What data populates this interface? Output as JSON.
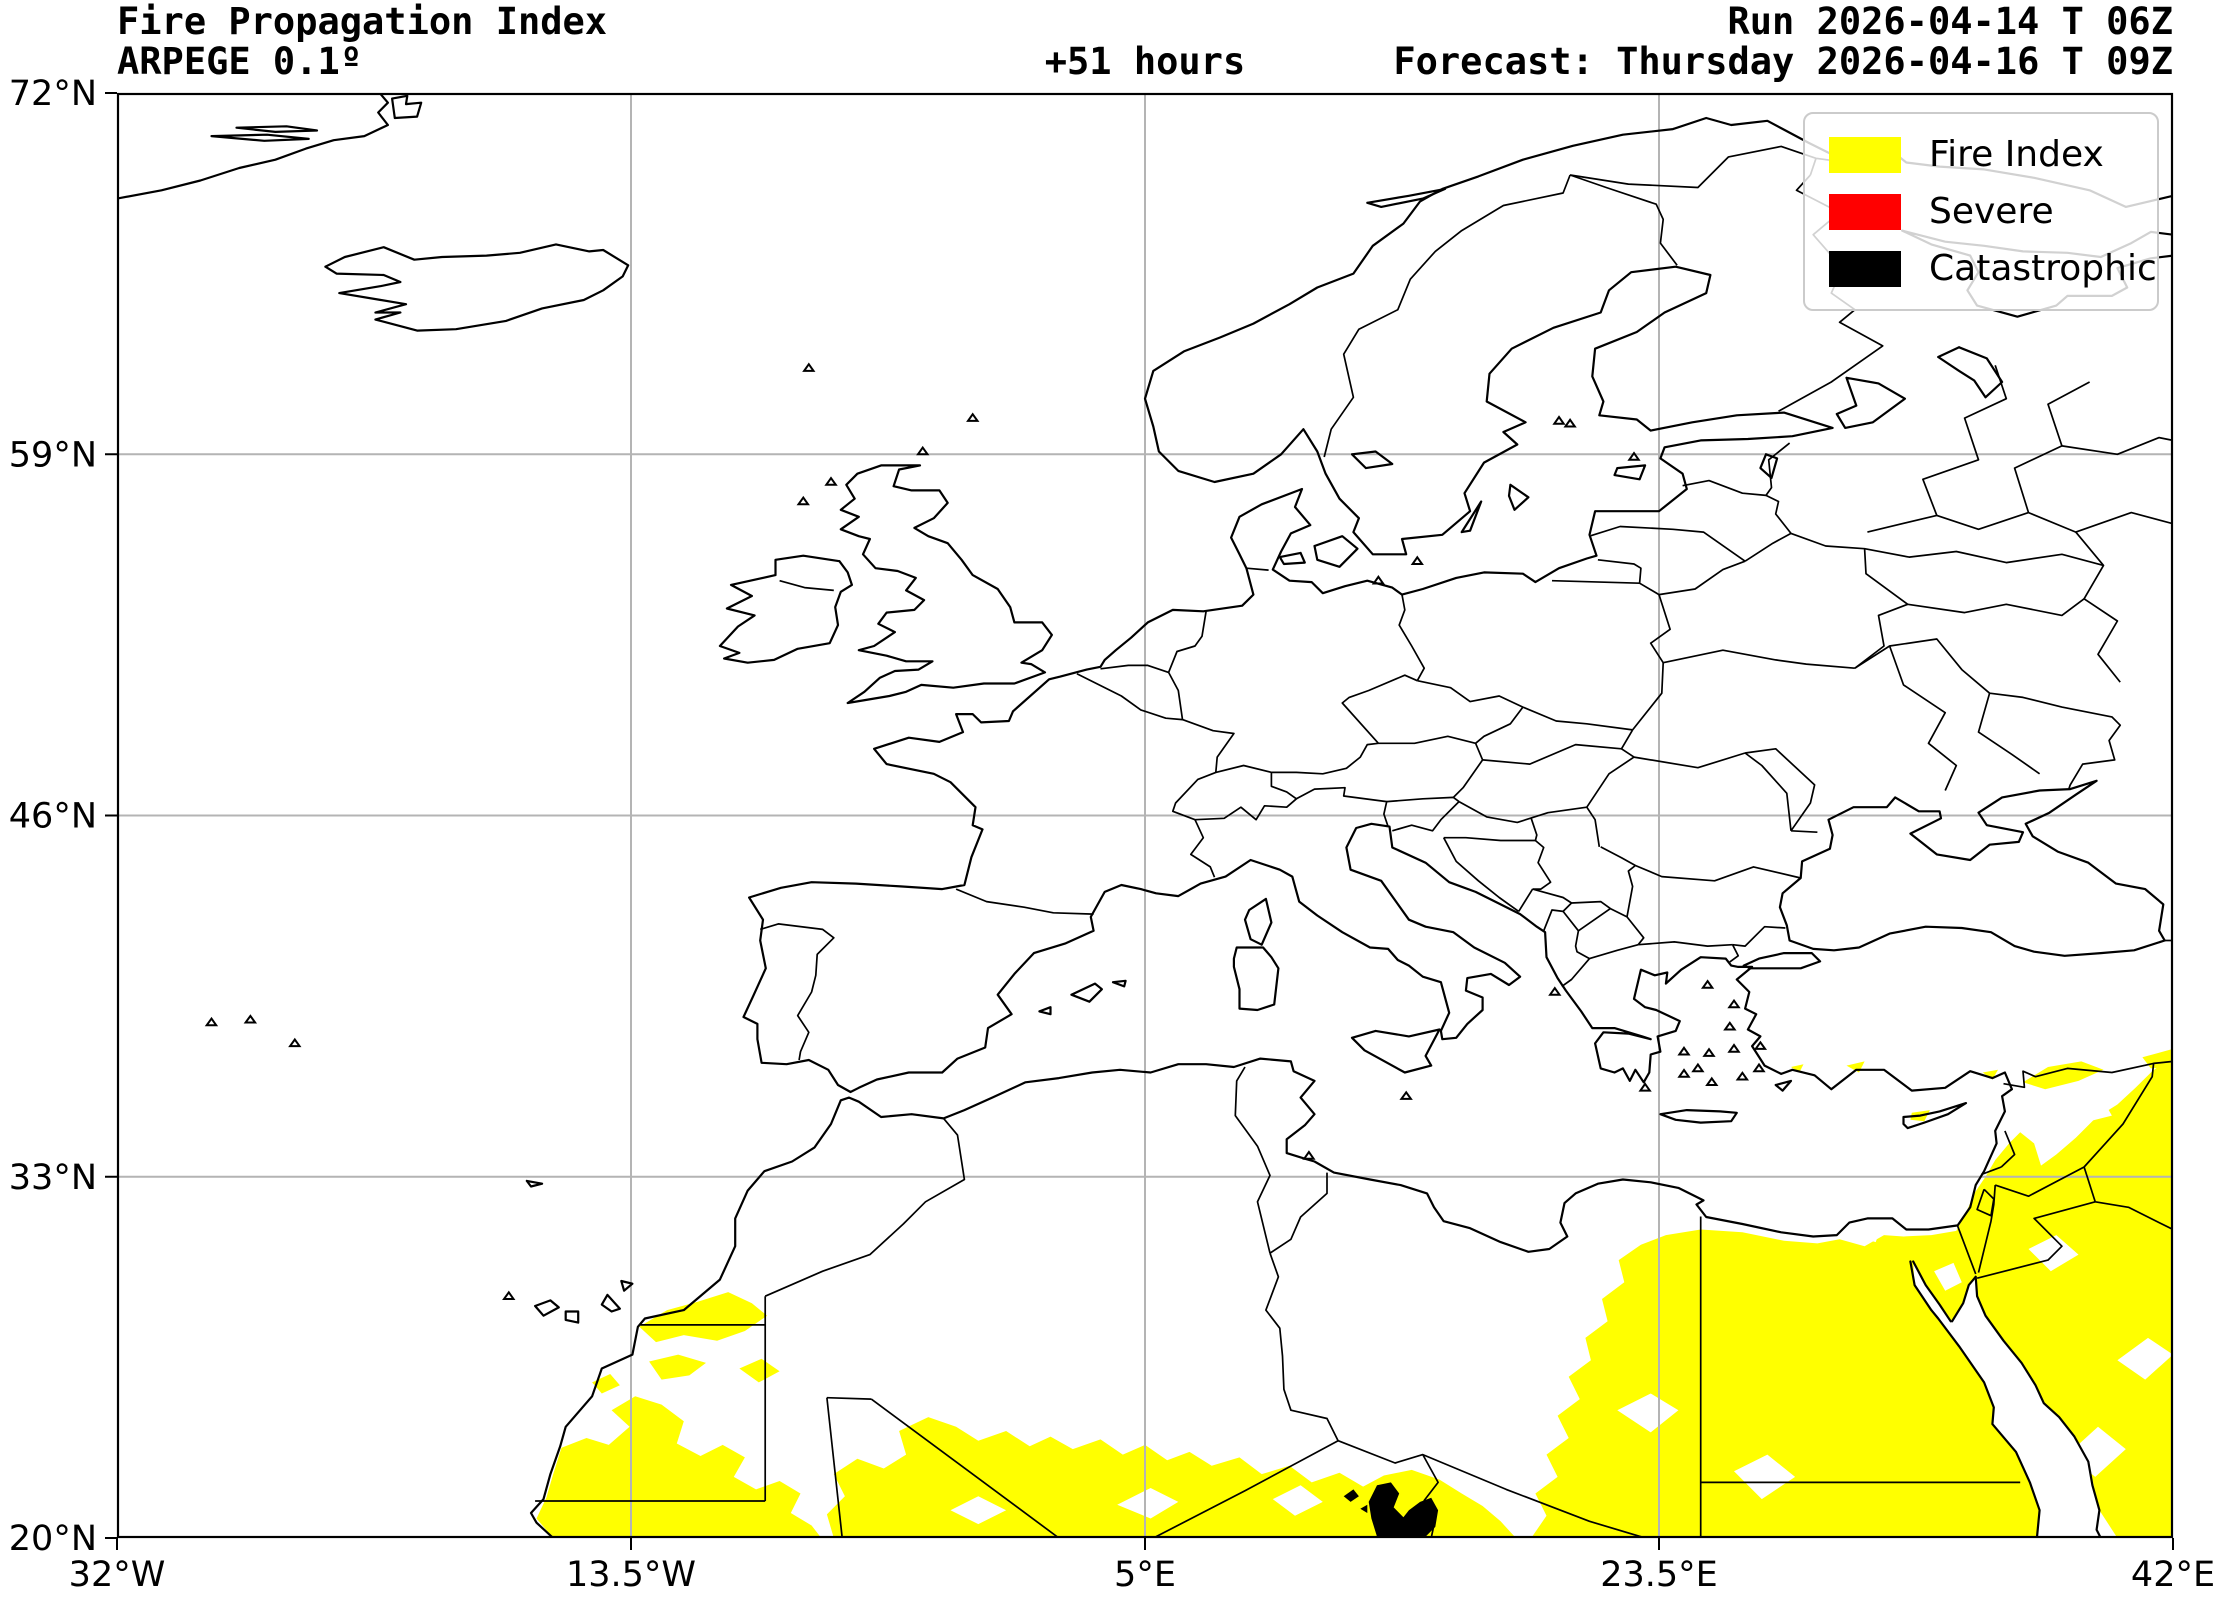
{
  "header": {
    "title_line1": "Fire Propagation Index",
    "title_line2": "ARPEGE 0.1º",
    "run_label": "Run 2026-04-14 T 06Z",
    "lead_time": "+51 hours",
    "forecast_label": "Forecast: Thursday 2026-04-16 T 09Z"
  },
  "legend": {
    "items": [
      {
        "label": "Fire Index",
        "color": "#ffff00"
      },
      {
        "label": "Severe",
        "color": "#ff0000"
      },
      {
        "label": "Catastrophic",
        "color": "#000000"
      }
    ]
  },
  "axes": {
    "lon_min": -32,
    "lon_max": 42,
    "lat_min": 20,
    "lat_max": 72,
    "x_ticks": [
      {
        "value": -32,
        "label": "32°W"
      },
      {
        "value": -13.5,
        "label": "13.5°W"
      },
      {
        "value": 5,
        "label": "5°E"
      },
      {
        "value": 23.5,
        "label": "23.5°E"
      },
      {
        "value": 42,
        "label": "42°E"
      }
    ],
    "y_ticks": [
      {
        "value": 72,
        "label": "72°N"
      },
      {
        "value": 59,
        "label": "59°N"
      },
      {
        "value": 46,
        "label": "46°N"
      },
      {
        "value": 33,
        "label": "33°N"
      },
      {
        "value": 20,
        "label": "20°N"
      }
    ],
    "gridline_color": "#b4b4b4",
    "frame_color": "#000000"
  },
  "map_data": {
    "fire_index_regions": [
      {
        "pts": [
          [
            -16.9,
            20.7
          ],
          [
            -16.55,
            21.45
          ],
          [
            -16.3,
            22.3
          ],
          [
            -16.0,
            23.25
          ],
          [
            -15.1,
            23.6
          ],
          [
            -14.3,
            23.35
          ],
          [
            -13.55,
            24.0
          ],
          [
            -14.2,
            24.6
          ],
          [
            -13.35,
            25.1
          ],
          [
            -12.4,
            24.8
          ],
          [
            -11.6,
            24.2
          ],
          [
            -11.85,
            23.4
          ],
          [
            -11.0,
            22.95
          ],
          [
            -10.2,
            23.35
          ],
          [
            -9.4,
            22.9
          ],
          [
            -9.8,
            22.2
          ],
          [
            -9.0,
            21.75
          ],
          [
            -8.15,
            22.05
          ],
          [
            -7.4,
            21.6
          ],
          [
            -7.75,
            20.9
          ],
          [
            -7.0,
            20.45
          ],
          [
            -6.65,
            20.0
          ],
          [
            -16.3,
            20.0
          ]
        ]
      },
      {
        "pts": [
          [
            -13.2,
            27.6
          ],
          [
            -12.2,
            28.2
          ],
          [
            -11.1,
            28.5
          ],
          [
            -10.0,
            28.85
          ],
          [
            -9.15,
            28.45
          ],
          [
            -8.6,
            28.0
          ],
          [
            -9.4,
            27.45
          ],
          [
            -10.4,
            27.1
          ],
          [
            -11.6,
            27.3
          ],
          [
            -12.6,
            27.05
          ]
        ]
      },
      {
        "pts": [
          [
            -12.85,
            26.35
          ],
          [
            -11.8,
            26.6
          ],
          [
            -10.8,
            26.3
          ],
          [
            -11.4,
            25.85
          ],
          [
            -12.4,
            25.7
          ]
        ]
      },
      {
        "pts": [
          [
            -9.6,
            26.1
          ],
          [
            -8.8,
            26.45
          ],
          [
            -8.15,
            26.0
          ],
          [
            -8.9,
            25.6
          ]
        ]
      },
      {
        "pts": [
          [
            -14.9,
            25.6
          ],
          [
            -14.25,
            25.9
          ],
          [
            -13.9,
            25.5
          ],
          [
            -14.55,
            25.2
          ]
        ]
      },
      {
        "pts": [
          [
            -6.2,
            20.0
          ],
          [
            -6.45,
            20.85
          ],
          [
            -5.8,
            21.5
          ],
          [
            -6.2,
            22.3
          ],
          [
            -5.35,
            22.85
          ],
          [
            -4.4,
            22.5
          ],
          [
            -3.6,
            23.0
          ],
          [
            -3.85,
            23.85
          ],
          [
            -2.8,
            24.35
          ],
          [
            -1.8,
            24.0
          ],
          [
            -1.0,
            23.5
          ],
          [
            0.0,
            23.85
          ],
          [
            0.85,
            23.3
          ],
          [
            1.6,
            23.65
          ],
          [
            2.4,
            23.2
          ],
          [
            3.4,
            23.55
          ],
          [
            4.2,
            23.0
          ],
          [
            5.0,
            23.35
          ],
          [
            5.8,
            22.8
          ],
          [
            6.6,
            23.1
          ],
          [
            7.4,
            22.6
          ],
          [
            8.4,
            22.9
          ],
          [
            9.2,
            22.3
          ],
          [
            10.2,
            22.6
          ],
          [
            11.0,
            22.0
          ],
          [
            12.0,
            22.35
          ],
          [
            12.85,
            21.85
          ],
          [
            13.6,
            22.25
          ],
          [
            14.6,
            22.45
          ],
          [
            15.6,
            22.1
          ],
          [
            16.4,
            21.6
          ],
          [
            17.15,
            21.15
          ],
          [
            17.8,
            20.6
          ],
          [
            18.35,
            20.0
          ]
        ],
        "holes": [
          [
            [
              -2.0,
              21.0
            ],
            [
              -1.0,
              21.5
            ],
            [
              0.0,
              21.0
            ],
            [
              -1.0,
              20.5
            ]
          ],
          [
            [
              4.0,
              21.2
            ],
            [
              5.2,
              21.8
            ],
            [
              6.2,
              21.3
            ],
            [
              5.2,
              20.7
            ]
          ],
          [
            [
              9.6,
              21.4
            ],
            [
              10.6,
              21.9
            ],
            [
              11.4,
              21.3
            ],
            [
              10.4,
              20.8
            ]
          ]
        ]
      },
      {
        "pts": [
          [
            18.9,
            20.0
          ],
          [
            19.45,
            20.8
          ],
          [
            19.05,
            21.6
          ],
          [
            19.85,
            22.2
          ],
          [
            19.45,
            23.0
          ],
          [
            20.25,
            23.6
          ],
          [
            19.85,
            24.4
          ],
          [
            20.65,
            25.0
          ],
          [
            20.25,
            25.8
          ],
          [
            21.05,
            26.4
          ],
          [
            20.85,
            27.2
          ],
          [
            21.65,
            27.8
          ],
          [
            21.45,
            28.6
          ],
          [
            22.25,
            29.2
          ],
          [
            22.05,
            30.0
          ],
          [
            22.85,
            30.55
          ],
          [
            23.75,
            30.9
          ],
          [
            25.0,
            31.1
          ],
          [
            26.5,
            31.0
          ],
          [
            28.0,
            30.7
          ],
          [
            29.2,
            30.6
          ],
          [
            30.0,
            30.75
          ],
          [
            30.9,
            30.5
          ],
          [
            31.6,
            30.9
          ],
          [
            32.3,
            30.85
          ],
          [
            33.3,
            30.9
          ],
          [
            34.2,
            31.05
          ],
          [
            34.55,
            31.7
          ],
          [
            34.85,
            32.4
          ],
          [
            35.25,
            33.0
          ],
          [
            35.6,
            33.6
          ],
          [
            36.1,
            34.2
          ],
          [
            36.5,
            34.6
          ],
          [
            37.0,
            34.2
          ],
          [
            37.25,
            33.4
          ],
          [
            37.8,
            33.8
          ],
          [
            38.5,
            34.4
          ],
          [
            39.2,
            35.1
          ],
          [
            40.0,
            35.6
          ],
          [
            40.65,
            36.2
          ],
          [
            41.25,
            36.8
          ],
          [
            42.0,
            37.35
          ],
          [
            42.0,
            20.0
          ],
          [
            40.0,
            20.0
          ],
          [
            39.35,
            21.0
          ],
          [
            38.95,
            22.75
          ],
          [
            38.45,
            23.65
          ],
          [
            37.9,
            24.35
          ],
          [
            37.35,
            24.85
          ],
          [
            37.05,
            25.5
          ],
          [
            36.55,
            26.3
          ],
          [
            35.9,
            27.1
          ],
          [
            35.25,
            28.0
          ],
          [
            34.95,
            28.7
          ],
          [
            34.9,
            29.4
          ],
          [
            34.65,
            29.1
          ],
          [
            34.45,
            28.45
          ],
          [
            34.05,
            27.8
          ],
          [
            33.6,
            28.4
          ],
          [
            33.1,
            29.1
          ],
          [
            32.65,
            29.95
          ],
          [
            32.7,
            29.1
          ],
          [
            33.3,
            28.2
          ],
          [
            33.55,
            27.9
          ],
          [
            34.3,
            26.9
          ],
          [
            35.2,
            25.6
          ],
          [
            35.55,
            24.7
          ],
          [
            35.5,
            24.1
          ],
          [
            36.35,
            23.1
          ],
          [
            36.85,
            22.0
          ],
          [
            37.2,
            21.0
          ],
          [
            37.1,
            20.0
          ]
        ]
      },
      {
        "pts": [
          [
            36.6,
            36.4
          ],
          [
            37.5,
            36.95
          ],
          [
            38.7,
            37.15
          ],
          [
            39.5,
            36.85
          ],
          [
            38.6,
            36.45
          ],
          [
            37.4,
            36.15
          ]
        ]
      },
      {
        "pts": [
          [
            40.9,
            37.3
          ],
          [
            42.0,
            37.6
          ],
          [
            42.0,
            36.95
          ],
          [
            41.2,
            36.9
          ]
        ]
      },
      {
        "pts": [
          [
            32.6,
            35.3
          ],
          [
            33.25,
            35.4
          ],
          [
            33.05,
            35.0
          ],
          [
            32.55,
            35.05
          ]
        ]
      },
      {
        "pts": [
          [
            30.25,
            37.0
          ],
          [
            30.9,
            37.15
          ],
          [
            30.7,
            36.75
          ]
        ]
      },
      {
        "pts": [
          [
            35.15,
            36.75
          ],
          [
            35.7,
            36.85
          ],
          [
            35.5,
            36.5
          ]
        ]
      },
      {
        "pts": [
          [
            28.25,
            36.95
          ],
          [
            28.7,
            37.05
          ],
          [
            28.55,
            36.75
          ]
        ]
      }
    ],
    "white_gaps": [
      {
        "pts": [
          [
            30.5,
            31.45
          ],
          [
            31.55,
            31.35
          ],
          [
            31.3,
            30.65
          ],
          [
            30.6,
            30.85
          ]
        ]
      },
      {
        "pts": [
          [
            22.0,
            24.6
          ],
          [
            23.2,
            25.2
          ],
          [
            24.2,
            24.6
          ],
          [
            23.2,
            23.8
          ]
        ]
      },
      {
        "pts": [
          [
            26.2,
            22.4
          ],
          [
            27.4,
            23.0
          ],
          [
            28.4,
            22.2
          ],
          [
            27.2,
            21.4
          ]
        ]
      },
      {
        "pts": [
          [
            38.2,
            35.6
          ],
          [
            39.4,
            35.9
          ],
          [
            39.8,
            35.2
          ],
          [
            38.6,
            34.9
          ]
        ]
      },
      {
        "pts": [
          [
            36.8,
            30.4
          ],
          [
            37.8,
            30.9
          ],
          [
            38.6,
            30.2
          ],
          [
            37.6,
            29.6
          ]
        ]
      },
      {
        "pts": [
          [
            38.2,
            23.0
          ],
          [
            39.3,
            24.0
          ],
          [
            40.3,
            23.2
          ],
          [
            39.2,
            22.2
          ]
        ]
      },
      {
        "pts": [
          [
            40.0,
            26.4
          ],
          [
            41.1,
            27.2
          ],
          [
            42.0,
            26.6
          ],
          [
            41.0,
            25.7
          ]
        ]
      },
      {
        "pts": [
          [
            33.4,
            29.6
          ],
          [
            34.1,
            29.9
          ],
          [
            34.4,
            29.2
          ],
          [
            33.8,
            28.9
          ]
        ]
      }
    ],
    "catastrophic_regions": [
      {
        "pts": [
          [
            13.05,
            21.3
          ],
          [
            13.35,
            21.9
          ],
          [
            13.85,
            22.0
          ],
          [
            14.15,
            21.6
          ],
          [
            13.95,
            21.1
          ],
          [
            14.3,
            20.75
          ],
          [
            14.5,
            21.0
          ],
          [
            14.9,
            21.3
          ],
          [
            15.3,
            21.45
          ],
          [
            15.55,
            21.0
          ],
          [
            15.45,
            20.4
          ],
          [
            15.1,
            20.05
          ],
          [
            13.35,
            20.05
          ],
          [
            13.15,
            20.7
          ]
        ]
      },
      {
        "pts": [
          [
            12.15,
            21.5
          ],
          [
            12.5,
            21.75
          ],
          [
            12.7,
            21.5
          ],
          [
            12.4,
            21.3
          ]
        ]
      },
      {
        "pts": [
          [
            12.75,
            21.05
          ],
          [
            13.0,
            21.2
          ],
          [
            13.0,
            20.9
          ]
        ]
      }
    ]
  }
}
